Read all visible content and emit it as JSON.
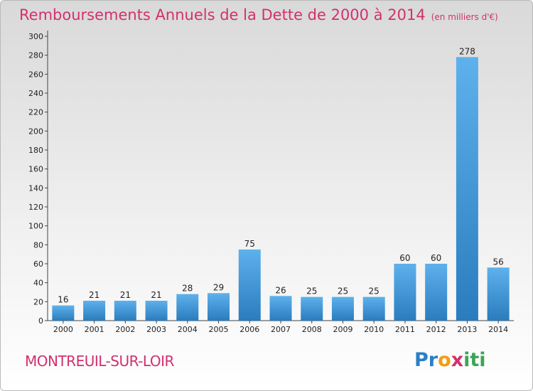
{
  "chart_data": {
    "type": "bar",
    "title": "Remboursements Annuels de la Dette de 2000 à 2014",
    "subtitle": "(en milliers d'€)",
    "categories": [
      "2000",
      "2001",
      "2002",
      "2003",
      "2004",
      "2005",
      "2006",
      "2007",
      "2008",
      "2009",
      "2010",
      "2011",
      "2012",
      "2013",
      "2014"
    ],
    "values": [
      16,
      21,
      21,
      21,
      28,
      29,
      75,
      26,
      25,
      25,
      25,
      60,
      60,
      278,
      56
    ],
    "ylim": [
      0,
      300
    ],
    "yticks": [
      0,
      20,
      40,
      60,
      80,
      100,
      120,
      140,
      160,
      180,
      200,
      220,
      240,
      260,
      280,
      300
    ],
    "xlabel": "",
    "ylabel": "",
    "grid": false,
    "bar_color": "#3f94d6"
  },
  "commune": "MONTREUIL-SUR-LOIR",
  "logo": {
    "letters": [
      "P",
      "r",
      "o",
      "x",
      "i",
      "t",
      "i"
    ],
    "colors": [
      "#2c7fc4",
      "#2c7fc4",
      "#f39c12",
      "#d2306e",
      "#3aa655",
      "#3aa655",
      "#3aa655"
    ]
  },
  "colors": {
    "accent": "#d2306e"
  }
}
